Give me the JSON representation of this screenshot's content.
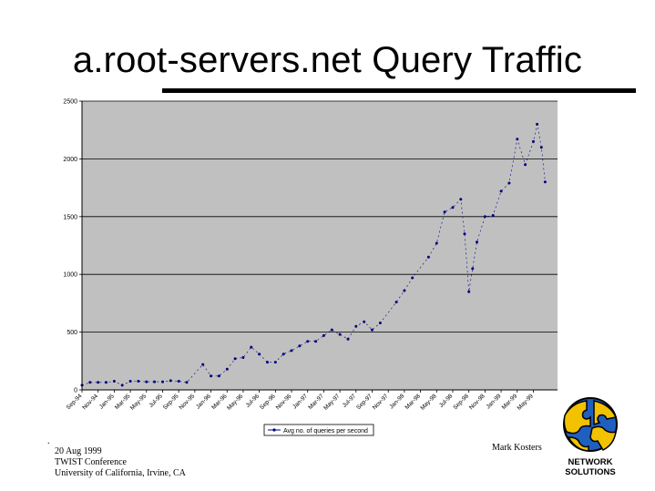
{
  "slide": {
    "title": "a.root-servers.net Query Traffic"
  },
  "footer": {
    "date": "20 Aug 1999",
    "conference": "TWIST Conference",
    "venue": "University of California, Irvine, CA",
    "author": "Mark Kosters",
    "mark": "."
  },
  "logo": {
    "line1": "NETWORK",
    "line2": "SOLUTIONS",
    "colors": [
      "#f2c200",
      "#1f5fbf",
      "#000000"
    ]
  },
  "chart_data": {
    "type": "line",
    "title": "",
    "xlabel": "",
    "ylabel": "",
    "ylim": [
      0,
      2500
    ],
    "yticks": [
      0,
      500,
      1000,
      1500,
      2000,
      2500
    ],
    "x_range": [
      "1994-09",
      "1999-08"
    ],
    "x_tick_labels": [
      "Sep-94",
      "Nov-94",
      "Jan-95",
      "Mar-95",
      "May-95",
      "Jul-95",
      "Sep-95",
      "Nov-95",
      "Jan-96",
      "Mar-96",
      "May-96",
      "Jul-96",
      "Sep-96",
      "Nov-96",
      "Jan-97",
      "Mar-97",
      "May-97",
      "Jul-97",
      "Sep-97",
      "Nov-97",
      "Jan-98",
      "Mar-98",
      "May-98",
      "Jul-98",
      "Sep-98",
      "Nov-98",
      "Jan-99",
      "Mar-99",
      "May-99"
    ],
    "gridlines": "horizontal",
    "plot_background": "#c0c0c0",
    "line_color": "#000080",
    "legend_position": "bottom",
    "series": [
      {
        "name": "Avg no. of queries per second",
        "points": [
          [
            "1994-09",
            40
          ],
          [
            "1994-10",
            65
          ],
          [
            "1994-11",
            65
          ],
          [
            "1994-12",
            65
          ],
          [
            "1995-01",
            75
          ],
          [
            "1995-02",
            40
          ],
          [
            "1995-03",
            75
          ],
          [
            "1995-04",
            75
          ],
          [
            "1995-05",
            70
          ],
          [
            "1995-06",
            70
          ],
          [
            "1995-07",
            70
          ],
          [
            "1995-08",
            80
          ],
          [
            "1995-09",
            75
          ],
          [
            "1995-10",
            65
          ],
          [
            "1995-12",
            220
          ],
          [
            "1996-01",
            120
          ],
          [
            "1996-02",
            120
          ],
          [
            "1996-03",
            180
          ],
          [
            "1996-04",
            270
          ],
          [
            "1996-05",
            280
          ],
          [
            "1996-06",
            370
          ],
          [
            "1996-07",
            310
          ],
          [
            "1996-08",
            240
          ],
          [
            "1996-09",
            240
          ],
          [
            "1996-10",
            310
          ],
          [
            "1996-11",
            340
          ],
          [
            "1996-12",
            380
          ],
          [
            "1997-01",
            420
          ],
          [
            "1997-02",
            420
          ],
          [
            "1997-03",
            470
          ],
          [
            "1997-04",
            520
          ],
          [
            "1997-05",
            480
          ],
          [
            "1997-06",
            440
          ],
          [
            "1997-07",
            550
          ],
          [
            "1997-08",
            590
          ],
          [
            "1997-09",
            520
          ],
          [
            "1997-10",
            580
          ],
          [
            "1997-12",
            760
          ],
          [
            "1998-01",
            860
          ],
          [
            "1998-02",
            970
          ],
          [
            "1998-04",
            1150
          ],
          [
            "1998-05",
            1270
          ],
          [
            "1998-06",
            1540
          ],
          [
            "1998-07",
            1580
          ],
          [
            "1998-08",
            1650
          ],
          [
            "1998-08-15",
            1350
          ],
          [
            "1998-09",
            850
          ],
          [
            "1998-09-15",
            1050
          ],
          [
            "1998-10",
            1280
          ],
          [
            "1998-11",
            1500
          ],
          [
            "1998-12",
            1510
          ],
          [
            "1999-01",
            1720
          ],
          [
            "1999-02",
            1790
          ],
          [
            "1999-03",
            2170
          ],
          [
            "1999-04",
            1950
          ],
          [
            "1999-05",
            2150
          ],
          [
            "1999-05-15",
            2300
          ],
          [
            "1999-06",
            2100
          ],
          [
            "1999-06-15",
            1800
          ]
        ]
      }
    ]
  }
}
